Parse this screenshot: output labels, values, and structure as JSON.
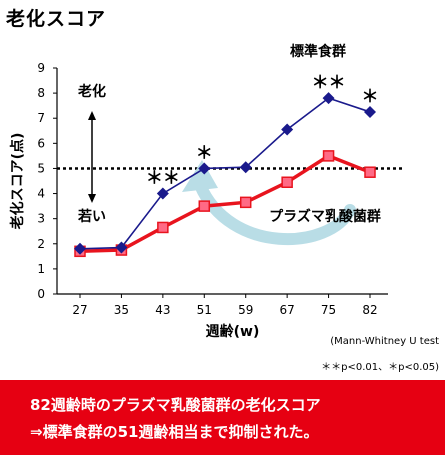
{
  "page_title": "老化スコア",
  "chart_data": {
    "type": "line",
    "xlabel": "週齢(w)",
    "ylabel": "老化スコア(点)",
    "categories": [
      "27",
      "35",
      "43",
      "51",
      "59",
      "67",
      "75",
      "82"
    ],
    "ylim": [
      0,
      9
    ],
    "yticks": [
      "0",
      "1",
      "2",
      "3",
      "4",
      "5",
      "6",
      "7",
      "8",
      "9"
    ],
    "reference_line": 5,
    "series": [
      {
        "name": "標準食群",
        "values": [
          1.8,
          1.85,
          4.0,
          5.0,
          5.05,
          6.55,
          7.8,
          7.25
        ],
        "color": "#1a1a8c"
      },
      {
        "name": "プラズマ乳酸菌群",
        "values": [
          1.7,
          1.75,
          2.65,
          3.5,
          3.65,
          4.45,
          5.5,
          4.85
        ],
        "color": "#e8141e"
      }
    ],
    "significance": [
      {
        "category": "43",
        "text": "＊＊"
      },
      {
        "category": "51",
        "text": "＊"
      },
      {
        "category": "75",
        "text": "＊＊"
      },
      {
        "category": "82",
        "text": "＊"
      }
    ],
    "annotations": {
      "top": "老化",
      "bottom": "若い"
    },
    "notes": [
      "(Mann-Whitney U test",
      "＊＊p<0.01、＊p<0.05)"
    ],
    "arrow_color": "#b9dde6"
  },
  "banner": {
    "line1": "82週齢時のプラズマ乳酸菌群の老化スコア",
    "line2": "⇒標準食群の51週齢相当まで抑制された。",
    "color": "#e60012"
  }
}
